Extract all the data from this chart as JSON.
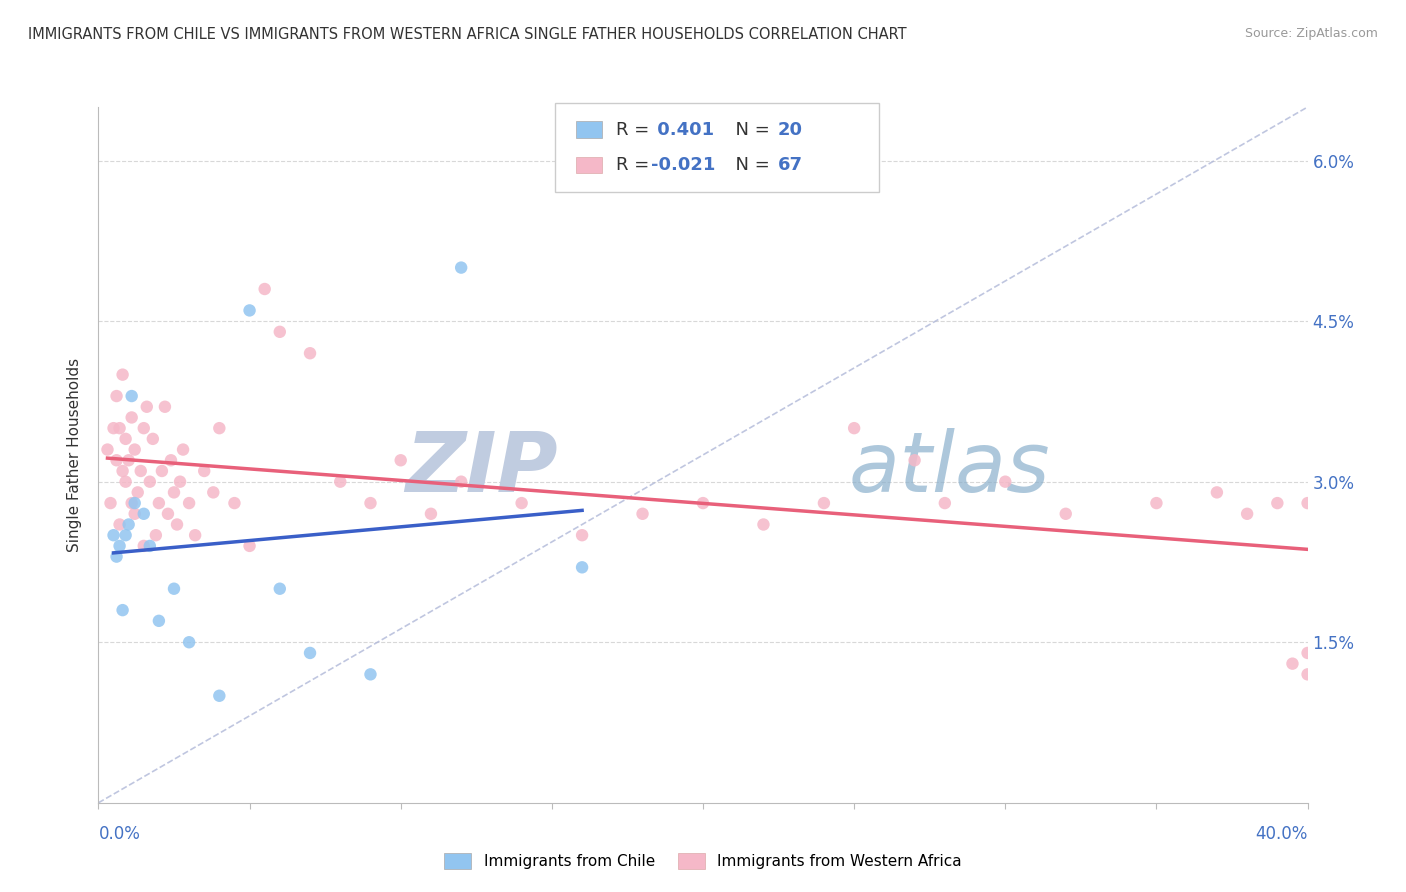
{
  "title": "IMMIGRANTS FROM CHILE VS IMMIGRANTS FROM WESTERN AFRICA SINGLE FATHER HOUSEHOLDS CORRELATION CHART",
  "source": "Source: ZipAtlas.com",
  "ylabel": "Single Father Households",
  "xlim": [
    0.0,
    40.0
  ],
  "ylim": [
    0.0,
    6.5
  ],
  "yticks": [
    0.0,
    1.5,
    3.0,
    4.5,
    6.0
  ],
  "ytick_labels": [
    "0.0%",
    "1.5%",
    "3.0%",
    "4.5%",
    "6.0%"
  ],
  "xtick_right_label": "40.0%",
  "xtick_left_label": "0.0%",
  "chile_R": 0.401,
  "chile_N": 20,
  "wafrica_R": -0.021,
  "wafrica_N": 67,
  "chile_color": "#92c5f0",
  "wafrica_color": "#f5b8c8",
  "chile_line_color": "#3a5fc8",
  "wafrica_line_color": "#e8607a",
  "dashed_line_color": "#b0b8d8",
  "watermark_zip_color": "#c0cce0",
  "watermark_atlas_color": "#8ab0cc",
  "chile_x": [
    0.5,
    0.6,
    0.7,
    0.8,
    0.9,
    1.0,
    1.1,
    1.2,
    1.5,
    1.7,
    2.0,
    2.5,
    3.0,
    4.0,
    5.0,
    6.0,
    7.0,
    9.0,
    12.0,
    16.0
  ],
  "chile_y": [
    2.5,
    2.3,
    2.4,
    1.8,
    2.5,
    2.6,
    3.8,
    2.8,
    2.7,
    2.4,
    1.7,
    2.0,
    1.5,
    1.0,
    4.6,
    2.0,
    1.4,
    1.2,
    5.0,
    2.2
  ],
  "wafrica_x": [
    0.3,
    0.4,
    0.5,
    0.6,
    0.6,
    0.7,
    0.7,
    0.8,
    0.8,
    0.9,
    0.9,
    1.0,
    1.1,
    1.1,
    1.2,
    1.2,
    1.3,
    1.4,
    1.5,
    1.5,
    1.6,
    1.7,
    1.8,
    1.9,
    2.0,
    2.1,
    2.2,
    2.3,
    2.4,
    2.5,
    2.6,
    2.7,
    2.8,
    3.0,
    3.2,
    3.5,
    3.8,
    4.0,
    4.5,
    5.0,
    5.5,
    6.0,
    7.0,
    8.0,
    9.0,
    10.0,
    11.0,
    12.0,
    14.0,
    16.0,
    18.0,
    20.0,
    22.0,
    24.0,
    25.0,
    27.0,
    28.0,
    30.0,
    32.0,
    35.0,
    37.0,
    38.0,
    39.0,
    39.5,
    40.0,
    40.0,
    40.0
  ],
  "wafrica_y": [
    3.3,
    2.8,
    3.5,
    3.2,
    3.8,
    2.6,
    3.5,
    3.1,
    4.0,
    3.4,
    3.0,
    3.2,
    3.6,
    2.8,
    3.3,
    2.7,
    2.9,
    3.1,
    3.5,
    2.4,
    3.7,
    3.0,
    3.4,
    2.5,
    2.8,
    3.1,
    3.7,
    2.7,
    3.2,
    2.9,
    2.6,
    3.0,
    3.3,
    2.8,
    2.5,
    3.1,
    2.9,
    3.5,
    2.8,
    2.4,
    4.8,
    4.4,
    4.2,
    3.0,
    2.8,
    3.2,
    2.7,
    3.0,
    2.8,
    2.5,
    2.7,
    2.8,
    2.6,
    2.8,
    3.5,
    3.2,
    2.8,
    3.0,
    2.7,
    2.8,
    2.9,
    2.7,
    2.8,
    1.3,
    1.4,
    1.2,
    2.8
  ]
}
